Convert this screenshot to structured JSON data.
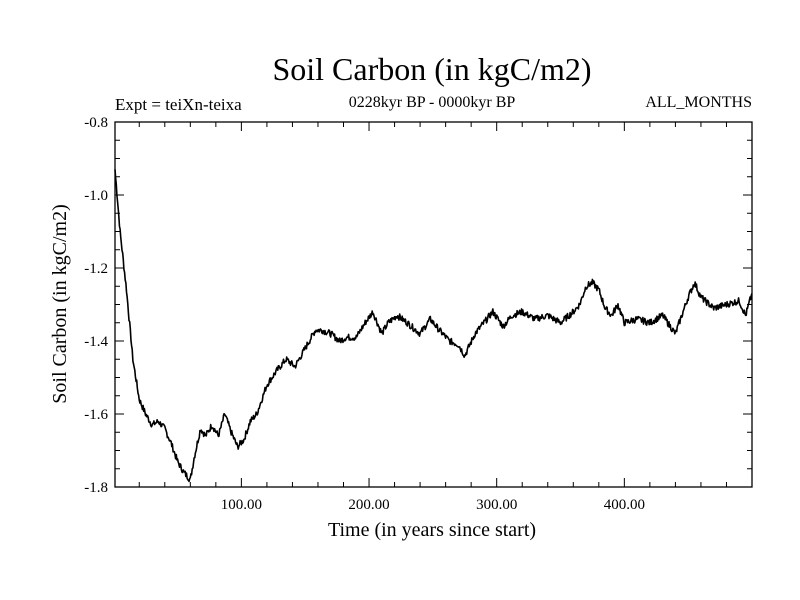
{
  "chart_data": {
    "type": "line",
    "title": "Soil Carbon (in kgC/m2)",
    "subtitle_left": "Expt = teiXn-teixa",
    "subtitle_center": "0228kyr BP - 0000kyr BP",
    "subtitle_right": "ALL_MONTHS",
    "xlabel": "Time (in years since start)",
    "ylabel": "Soil Carbon (in kgC/m2)",
    "xlim": [
      1,
      500
    ],
    "ylim": [
      -1.8,
      -0.8
    ],
    "xticks": [
      100,
      200,
      300,
      400
    ],
    "xtick_labels": [
      "100.00",
      "200.00",
      "300.00",
      "400.00"
    ],
    "yticks": [
      -0.8,
      -1.0,
      -1.2,
      -1.4,
      -1.6,
      -1.8
    ],
    "ytick_labels": [
      "-0.8",
      "-1.0",
      "-1.2",
      "-1.4",
      "-1.6",
      "-1.8"
    ],
    "grid": false,
    "series": [
      {
        "name": "Soil Carbon",
        "color": "#000000",
        "x": [
          1,
          5,
          10,
          15,
          20,
          25,
          30,
          35,
          40,
          45,
          50,
          55,
          60,
          63,
          68,
          72,
          77,
          82,
          87,
          92,
          97,
          102,
          107,
          112,
          120,
          128,
          135,
          142,
          150,
          158,
          163,
          170,
          177,
          182,
          190,
          197,
          203,
          210,
          215,
          222,
          230,
          240,
          248,
          255,
          263,
          270,
          275,
          283,
          290,
          297,
          305,
          312,
          320,
          330,
          340,
          350,
          360,
          365,
          370,
          375,
          380,
          385,
          390,
          395,
          400,
          410,
          420,
          430,
          440,
          445,
          450,
          455,
          460,
          470,
          480,
          490,
          495,
          500
        ],
        "values": [
          -0.93,
          -1.1,
          -1.26,
          -1.45,
          -1.56,
          -1.6,
          -1.63,
          -1.62,
          -1.64,
          -1.68,
          -1.73,
          -1.76,
          -1.78,
          -1.72,
          -1.64,
          -1.66,
          -1.63,
          -1.66,
          -1.6,
          -1.65,
          -1.69,
          -1.67,
          -1.62,
          -1.6,
          -1.52,
          -1.48,
          -1.45,
          -1.47,
          -1.42,
          -1.37,
          -1.37,
          -1.38,
          -1.4,
          -1.39,
          -1.39,
          -1.35,
          -1.32,
          -1.38,
          -1.35,
          -1.33,
          -1.35,
          -1.38,
          -1.34,
          -1.37,
          -1.4,
          -1.41,
          -1.44,
          -1.38,
          -1.35,
          -1.32,
          -1.36,
          -1.33,
          -1.32,
          -1.34,
          -1.33,
          -1.35,
          -1.32,
          -1.3,
          -1.25,
          -1.24,
          -1.26,
          -1.31,
          -1.33,
          -1.3,
          -1.35,
          -1.34,
          -1.35,
          -1.33,
          -1.38,
          -1.33,
          -1.28,
          -1.24,
          -1.28,
          -1.31,
          -1.3,
          -1.29,
          -1.33,
          -1.27
        ]
      }
    ]
  }
}
